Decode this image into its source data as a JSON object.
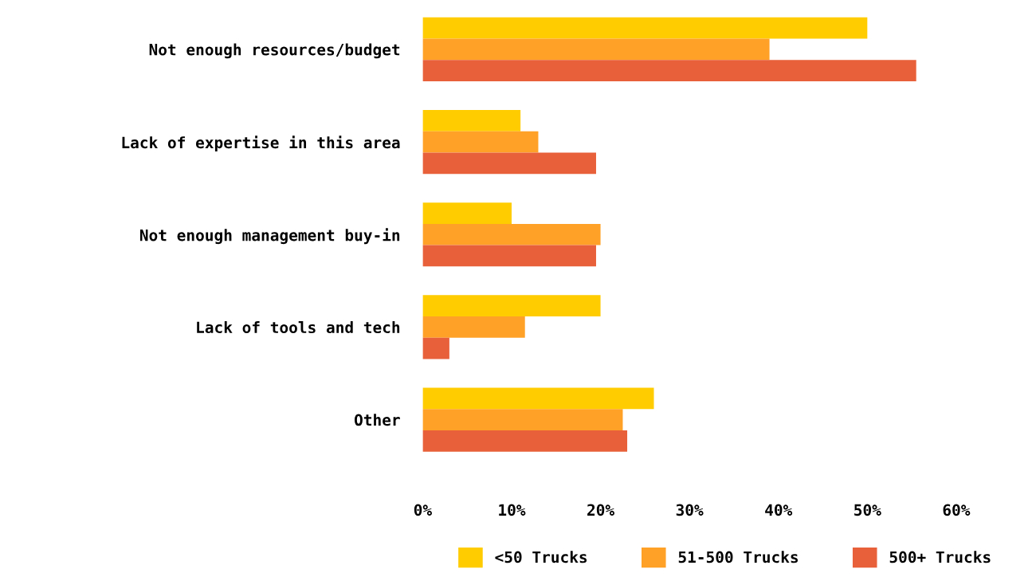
{
  "chart_data": {
    "type": "bar",
    "orientation": "horizontal",
    "categories": [
      "Not enough resources/budget",
      "Lack of expertise in this area",
      "Not enough management buy-in",
      "Lack of tools and tech",
      "Other"
    ],
    "series": [
      {
        "name": "<50 Trucks",
        "color": "#ffcc00",
        "values": [
          50,
          11,
          10,
          20,
          26
        ]
      },
      {
        "name": "51-500 Trucks",
        "color": "#ffa126",
        "values": [
          39,
          13,
          20,
          11.5,
          22.5
        ]
      },
      {
        "name": "500+ Trucks",
        "color": "#e8603a",
        "values": [
          55.5,
          19.5,
          19.5,
          3,
          23
        ]
      }
    ],
    "xlim": [
      0,
      60
    ],
    "xticks": [
      {
        "value": 0,
        "label": "0%"
      },
      {
        "value": 10,
        "label": "10%"
      },
      {
        "value": 20,
        "label": "20%"
      },
      {
        "value": 30,
        "label": "30%"
      },
      {
        "value": 40,
        "label": "40%"
      },
      {
        "value": 50,
        "label": "50%"
      },
      {
        "value": 60,
        "label": "60%"
      }
    ],
    "grid": false,
    "legend": "bottom"
  }
}
